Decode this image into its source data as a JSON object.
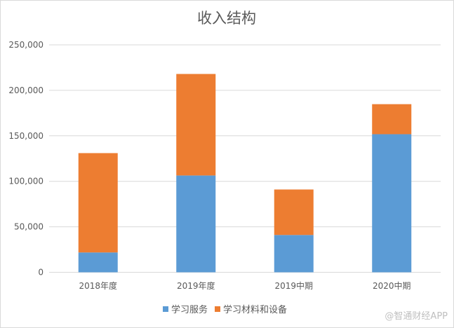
{
  "chart_data": {
    "type": "bar",
    "stacked": true,
    "title": "收入结构",
    "xlabel": "",
    "ylabel": "",
    "categories": [
      "2018年度",
      "2019年度",
      "2019中期",
      "2020中期"
    ],
    "series": [
      {
        "name": "学习服务",
        "color": "#5b9bd5",
        "values": [
          21800,
          106400,
          41000,
          151800
        ]
      },
      {
        "name": "学习材料和设备",
        "color": "#ed7d31",
        "values": [
          109200,
          111600,
          50000,
          33000
        ]
      }
    ],
    "ylim": [
      0,
      250000
    ],
    "yticks": [
      "0",
      "50,000",
      "100,000",
      "150,000",
      "200,000",
      "250,000"
    ],
    "grid": true,
    "legend": "bottom"
  },
  "watermark": "@智通财经APP"
}
